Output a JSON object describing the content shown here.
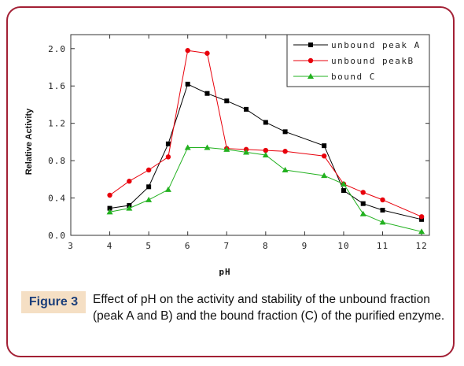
{
  "figure": {
    "label": "Figure 3",
    "caption": "Effect of pH on the activity and stability of the unbound fraction (peak A and B) and the bound fraction (C) of the purified enzyme."
  },
  "chart_data": {
    "type": "line",
    "title": "",
    "xlabel": "pH",
    "ylabel": "Relative Activity",
    "xlim": [
      3,
      12.2
    ],
    "ylim": [
      0,
      2.15
    ],
    "xticks": [
      3,
      4,
      5,
      6,
      7,
      8,
      9,
      10,
      11,
      12
    ],
    "yticks": [
      "0.0",
      "0.4",
      "0.8",
      "1.2",
      "1.6",
      "2.0"
    ],
    "grid": false,
    "legend_position": "top-right",
    "series": [
      {
        "name": "unbound peak A",
        "color": "#000000",
        "marker": "square",
        "points": [
          [
            4,
            0.29
          ],
          [
            4.5,
            0.32
          ],
          [
            5,
            0.52
          ],
          [
            5.5,
            0.98
          ],
          [
            6,
            1.62
          ],
          [
            6.5,
            1.52
          ],
          [
            7,
            1.44
          ],
          [
            7.5,
            1.35
          ],
          [
            8,
            1.21
          ],
          [
            8.5,
            1.11
          ],
          [
            9.5,
            0.96
          ],
          [
            10,
            0.48
          ],
          [
            10.5,
            0.34
          ],
          [
            11,
            0.27
          ],
          [
            12,
            0.17
          ]
        ]
      },
      {
        "name": "unbound peakB",
        "color": "#e8000b",
        "marker": "circle",
        "points": [
          [
            4,
            0.43
          ],
          [
            4.5,
            0.58
          ],
          [
            5,
            0.7
          ],
          [
            5.5,
            0.84
          ],
          [
            6,
            1.98
          ],
          [
            6.5,
            1.95
          ],
          [
            7,
            0.93
          ],
          [
            7.5,
            0.92
          ],
          [
            8,
            0.91
          ],
          [
            8.5,
            0.9
          ],
          [
            9.5,
            0.85
          ],
          [
            10,
            0.55
          ],
          [
            10.5,
            0.46
          ],
          [
            11,
            0.38
          ],
          [
            12,
            0.2
          ]
        ]
      },
      {
        "name": "bound C",
        "color": "#22b11f",
        "marker": "triangle",
        "points": [
          [
            4,
            0.25
          ],
          [
            4.5,
            0.29
          ],
          [
            5,
            0.38
          ],
          [
            5.5,
            0.49
          ],
          [
            6,
            0.94
          ],
          [
            6.5,
            0.94
          ],
          [
            7,
            0.92
          ],
          [
            7.5,
            0.89
          ],
          [
            8,
            0.86
          ],
          [
            8.5,
            0.7
          ],
          [
            9.5,
            0.64
          ],
          [
            10,
            0.55
          ],
          [
            10.5,
            0.23
          ],
          [
            11,
            0.14
          ],
          [
            12,
            0.04
          ]
        ]
      }
    ]
  }
}
